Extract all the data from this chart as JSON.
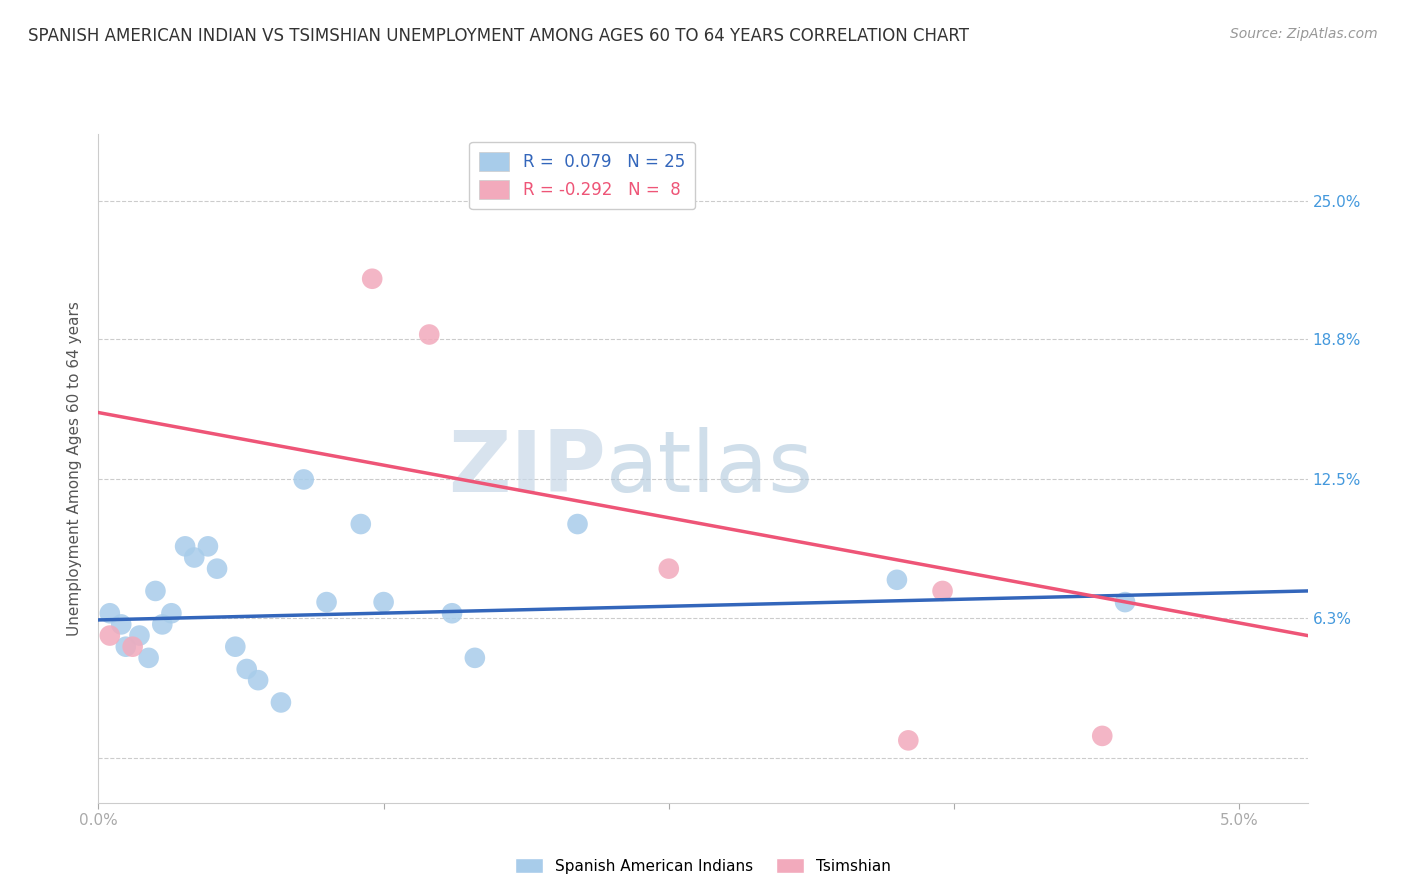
{
  "title": "SPANISH AMERICAN INDIAN VS TSIMSHIAN UNEMPLOYMENT AMONG AGES 60 TO 64 YEARS CORRELATION CHART",
  "source": "Source: ZipAtlas.com",
  "ylabel": "Unemployment Among Ages 60 to 64 years",
  "xlim": [
    0.0,
    5.3
  ],
  "ylim": [
    -2.0,
    28.0
  ],
  "yticks": [
    0.0,
    6.3,
    12.5,
    18.8,
    25.0
  ],
  "ytick_labels": [
    "",
    "6.3%",
    "12.5%",
    "18.8%",
    "25.0%"
  ],
  "xticks": [
    0.0,
    1.25,
    2.5,
    3.75,
    5.0
  ],
  "xtick_labels": [
    "0.0%",
    "",
    "",
    "",
    "5.0%"
  ],
  "r_blue": 0.079,
  "n_blue": 25,
  "r_pink": -0.292,
  "n_pink": 8,
  "blue_color": "#A8CCEA",
  "pink_color": "#F2AABC",
  "blue_line_color": "#3366BB",
  "pink_line_color": "#EE5577",
  "watermark_zip": "ZIP",
  "watermark_atlas": "atlas",
  "background_color": "#FFFFFF",
  "blue_scatter_x": [
    0.05,
    0.1,
    0.12,
    0.18,
    0.22,
    0.25,
    0.28,
    0.32,
    0.38,
    0.42,
    0.48,
    0.52,
    0.6,
    0.65,
    0.7,
    0.8,
    0.9,
    1.0,
    1.15,
    1.25,
    1.55,
    1.65,
    2.1,
    3.5,
    4.5
  ],
  "blue_scatter_y": [
    6.5,
    6.0,
    5.0,
    5.5,
    4.5,
    7.5,
    6.0,
    6.5,
    9.5,
    9.0,
    9.5,
    8.5,
    5.0,
    4.0,
    3.5,
    2.5,
    12.5,
    7.0,
    10.5,
    7.0,
    6.5,
    4.5,
    10.5,
    8.0,
    7.0
  ],
  "pink_scatter_x": [
    0.05,
    0.15,
    1.2,
    1.45,
    2.5,
    3.55,
    4.4,
    3.7
  ],
  "pink_scatter_y": [
    5.5,
    5.0,
    21.5,
    19.0,
    8.5,
    0.8,
    1.0,
    7.5
  ],
  "blue_trend_x": [
    0.0,
    5.3
  ],
  "blue_trend_y": [
    6.2,
    7.5
  ],
  "pink_trend_x": [
    0.0,
    5.3
  ],
  "pink_trend_y": [
    15.5,
    5.5
  ]
}
